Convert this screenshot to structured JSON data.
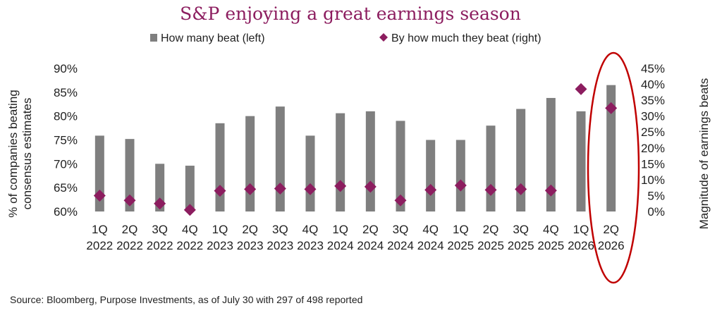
{
  "chart_data": {
    "type": "bar",
    "title": "S&P enjoying a great earnings season",
    "ylabel_left": [
      "% of companies beating",
      "consensus estimates"
    ],
    "ylabel_right": "Magnitude of earnings beats",
    "ylim_left": [
      0.6,
      0.9
    ],
    "ylim_right": [
      0,
      0.45
    ],
    "yticks_left": [
      "60%",
      "65%",
      "70%",
      "75%",
      "80%",
      "85%",
      "90%"
    ],
    "yticks_right": [
      "0%",
      "5%",
      "10%",
      "15%",
      "20%",
      "25%",
      "30%",
      "35%",
      "40%",
      "45%"
    ],
    "categories": [
      [
        "1Q",
        "2022"
      ],
      [
        "2Q",
        "2022"
      ],
      [
        "3Q",
        "2022"
      ],
      [
        "4Q",
        "2022"
      ],
      [
        "1Q",
        "2023"
      ],
      [
        "2Q",
        "2023"
      ],
      [
        "3Q",
        "2023"
      ],
      [
        "4Q",
        "2023"
      ],
      [
        "1Q",
        "2024"
      ],
      [
        "2Q",
        "2024"
      ],
      [
        "3Q",
        "2024"
      ],
      [
        "4Q",
        "2024"
      ],
      [
        "1Q",
        "2025"
      ],
      [
        "2Q",
        "2025"
      ],
      [
        "3Q",
        "2025"
      ],
      [
        "4Q",
        "2025"
      ],
      [
        "1Q",
        "2026"
      ],
      [
        "2Q",
        "2026"
      ]
    ],
    "series": [
      {
        "name": "How many beat (left)",
        "type": "bar",
        "axis": "left",
        "color": "#7f7f7f",
        "values": [
          0.759,
          0.752,
          0.7,
          0.696,
          0.785,
          0.8,
          0.82,
          0.759,
          0.806,
          0.81,
          0.79,
          0.75,
          0.75,
          0.78,
          0.815,
          0.838,
          0.81,
          0.865
        ]
      },
      {
        "name": "By how much they beat (right)",
        "type": "scatter",
        "marker": "diamond",
        "axis": "right",
        "color": "#8c1d5f",
        "values": [
          0.05,
          0.035,
          0.025,
          0.005,
          0.065,
          0.07,
          0.072,
          0.07,
          0.08,
          0.078,
          0.035,
          0.068,
          0.082,
          0.068,
          0.07,
          0.066,
          0.385,
          0.325
        ]
      }
    ],
    "highlight": {
      "shape": "ellipse",
      "color": "#c00000",
      "category_index": 17
    },
    "source": "Source: Bloomberg, Purpose Investments, as of July 30 with 297 of 498 reported"
  }
}
